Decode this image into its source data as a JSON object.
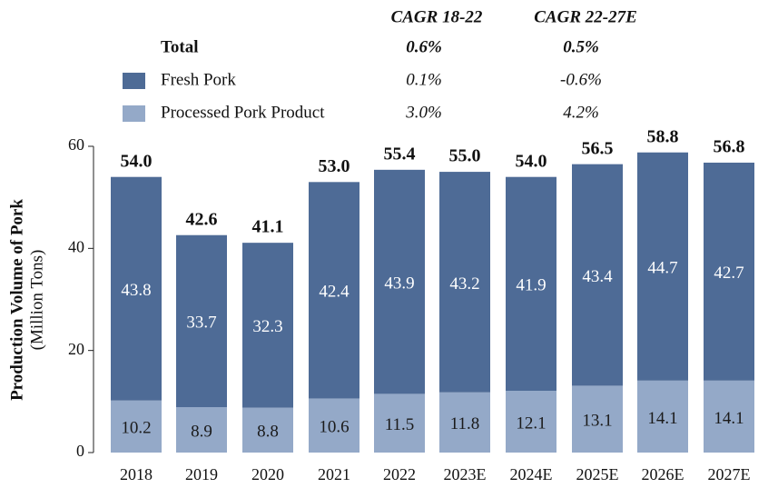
{
  "chart_data": {
    "type": "stacked_bar",
    "y_label": "Production Volume of Pork",
    "y_sublabel": "(Million Tons)",
    "cagr_headers": [
      "CAGR 18-22",
      "CAGR 22-27E"
    ],
    "categories": [
      "2018",
      "2019",
      "2020",
      "2021",
      "2022",
      "2023E",
      "2024E",
      "2025E",
      "2026E",
      "2027E"
    ],
    "series": [
      {
        "name": "Processed Pork Product",
        "color": "#94a9c8",
        "label_color": "#1a1a1a",
        "values": [
          10.2,
          8.9,
          8.8,
          10.6,
          11.5,
          11.8,
          12.1,
          13.1,
          14.1,
          14.1
        ],
        "cagr": [
          3.0,
          4.2
        ],
        "cagr_labels": [
          "3.0%",
          "4.2%"
        ]
      },
      {
        "name": "Fresh Pork",
        "color": "#4e6b96",
        "label_color": "#ffffff",
        "values": [
          43.8,
          33.7,
          32.3,
          42.4,
          43.9,
          43.2,
          41.9,
          43.4,
          44.7,
          42.7
        ],
        "cagr": [
          0.1,
          -0.6
        ],
        "cagr_labels": [
          "0.1%",
          "-0.6%"
        ]
      }
    ],
    "total": {
      "name": "Total",
      "values": [
        54.0,
        42.6,
        41.1,
        53.0,
        55.4,
        55.0,
        54.0,
        56.5,
        58.8,
        56.8
      ],
      "value_labels": [
        "54.0",
        "42.6",
        "41.1",
        "53.0",
        "55.4",
        "55.0",
        "54.0",
        "56.5",
        "58.8",
        "56.8"
      ],
      "cagr": [
        0.6,
        0.5
      ],
      "cagr_labels": [
        "0.6%",
        "0.5%"
      ]
    },
    "ylim": [
      0,
      60
    ],
    "yticks": [
      0,
      20,
      40,
      60
    ]
  }
}
